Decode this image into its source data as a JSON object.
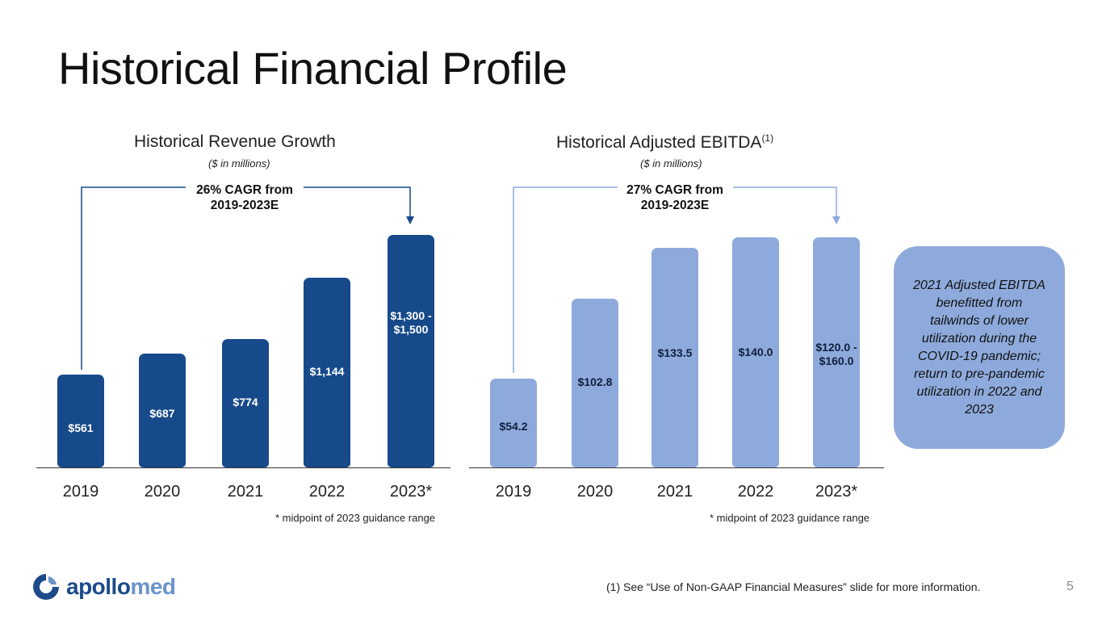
{
  "slide": {
    "title": "Historical Financial Profile",
    "page_number": "5",
    "footnote": "(1)  See “Use of Non-GAAP Financial Measures” slide for more information.",
    "logo": {
      "part1": "apollo",
      "part2": "med"
    }
  },
  "revenue": {
    "title": "Historical Revenue Growth",
    "subtitle": "($ in millions)",
    "cagr": "26% CAGR from 2019-2023E",
    "footnote": "* midpoint of 2023 guidance range",
    "color": "#174a8b"
  },
  "ebitda": {
    "title": "Historical Adjusted EBITDA",
    "title_sup": "(1)",
    "subtitle": "($ in millions)",
    "cagr": "27% CAGR from 2019-2023E",
    "footnote": "* midpoint of 2023 guidance range",
    "color": "#8eaadc"
  },
  "callout": {
    "text": "2021 Adjusted EBITDA benefitted from tailwinds of lower utilization during the COVID-19 pandemic; return to pre-pandemic utilization in 2022 and 2023"
  },
  "chart_data": [
    {
      "type": "bar",
      "title": "Historical Revenue Growth",
      "subtitle": "($ in millions)",
      "categories": [
        "2019",
        "2020",
        "2021",
        "2022",
        "2023*"
      ],
      "values": [
        561,
        687,
        774,
        1144,
        1400
      ],
      "labels": [
        "$561",
        "$687",
        "$774",
        "$1,144",
        "$1,300 - $1,500"
      ],
      "ylabel": "$ in millions",
      "annotation": "26% CAGR from 2019-2023E",
      "footnote": "* midpoint of 2023 guidance range"
    },
    {
      "type": "bar",
      "title": "Historical Adjusted EBITDA(1)",
      "subtitle": "($ in millions)",
      "categories": [
        "2019",
        "2020",
        "2021",
        "2022",
        "2023*"
      ],
      "values": [
        54.2,
        102.8,
        133.5,
        140.0,
        140.0
      ],
      "labels": [
        "$54.2",
        "$102.8",
        "$133.5",
        "$140.0",
        "$120.0 - $160.0"
      ],
      "ylabel": "$ in millions",
      "annotation": "27% CAGR from 2019-2023E",
      "footnote": "* midpoint of 2023 guidance range"
    }
  ]
}
